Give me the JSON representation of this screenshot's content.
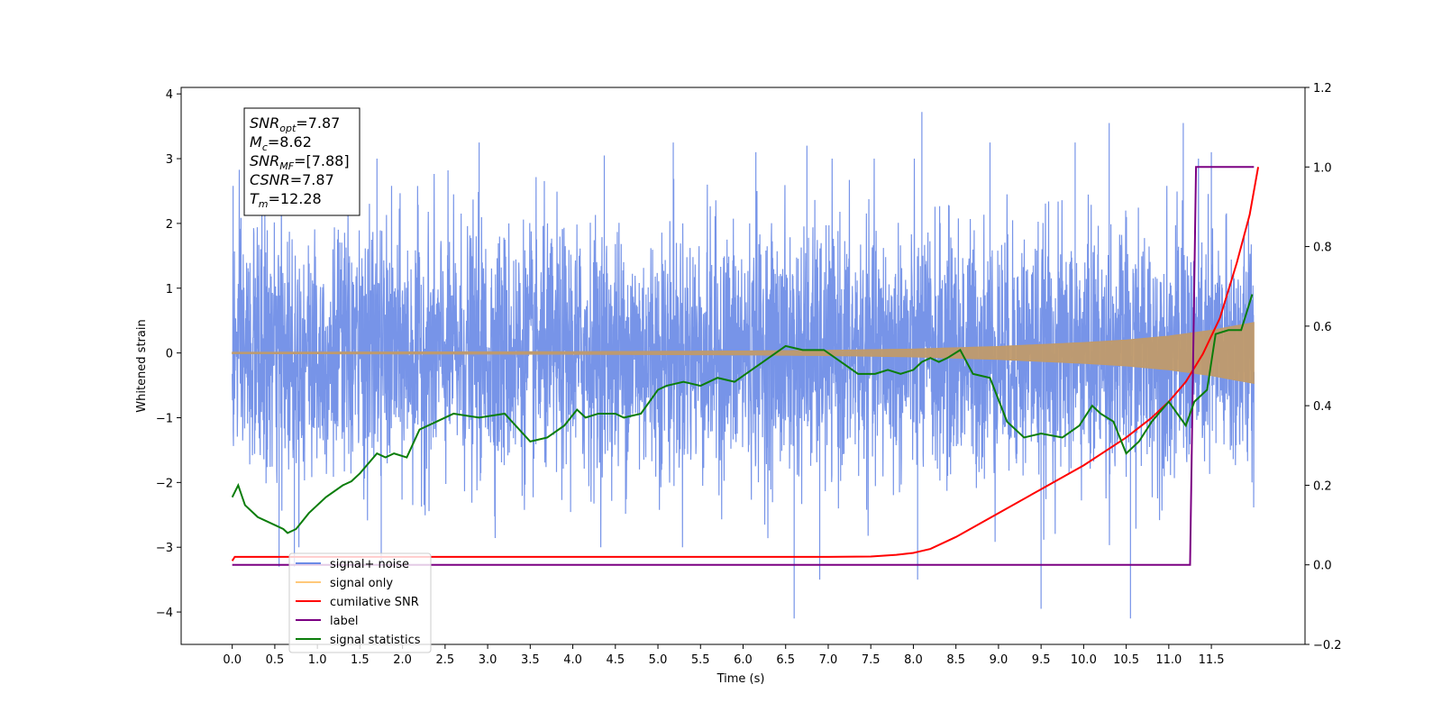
{
  "chart_data": {
    "type": "line",
    "xlabel": "Time (s)",
    "ylabel": "Whitened strain",
    "xlim": [
      -0.6,
      12.6
    ],
    "ylim": [
      -4.5,
      4.1
    ],
    "y2lim": [
      -0.2,
      1.2
    ],
    "x_ticks": [
      0.0,
      0.5,
      1.0,
      1.5,
      2.0,
      2.5,
      3.0,
      3.5,
      4.0,
      4.5,
      5.0,
      5.5,
      6.0,
      6.5,
      7.0,
      7.5,
      8.0,
      8.5,
      9.0,
      9.5,
      10.0,
      10.5,
      11.0,
      11.5
    ],
    "x_tick_labels": [
      "0.0",
      "0.5",
      "1.0",
      "1.5",
      "2.0",
      "2.5",
      "3.0",
      "3.5",
      "4.0",
      "4.5",
      "5.0",
      "5.5",
      "6.0",
      "6.5",
      "7.0",
      "7.5",
      "8.0",
      "8.5",
      "9.0",
      "9.5",
      "10.0",
      "10.5",
      "11.0",
      "11.5"
    ],
    "y_ticks": [
      -4,
      -3,
      -2,
      -1,
      0,
      1,
      2,
      3,
      4
    ],
    "y_tick_labels": [
      "−4",
      "−3",
      "−2",
      "−1",
      "0",
      "1",
      "2",
      "3",
      "4"
    ],
    "y2_ticks": [
      -0.2,
      0.0,
      0.2,
      0.4,
      0.6,
      0.8,
      1.0,
      1.2
    ],
    "y2_tick_labels": [
      "−0.2",
      "0.0",
      "0.2",
      "0.4",
      "0.6",
      "0.8",
      "1.0",
      "1.2"
    ],
    "grid": false,
    "legend_position": "lower-left",
    "series": [
      {
        "name": "signal+ noise",
        "color": "#6b8be6",
        "axis": "left",
        "kind": "noise-band",
        "x_range": [
          0.0,
          12.0
        ],
        "sigma": 1.0,
        "typical_range": [
          -2.3,
          2.5
        ],
        "spikes": [
          {
            "x": 0.01,
            "y": 2.58
          },
          {
            "x": 0.55,
            "y": -3.3
          },
          {
            "x": 0.73,
            "y": -3.3
          },
          {
            "x": 1.7,
            "y": 3.0
          },
          {
            "x": 1.75,
            "y": -3.3
          },
          {
            "x": 2.9,
            "y": 3.25
          },
          {
            "x": 4.37,
            "y": 3.05
          },
          {
            "x": 5.18,
            "y": 3.25
          },
          {
            "x": 6.15,
            "y": 3.1
          },
          {
            "x": 6.6,
            "y": -4.1
          },
          {
            "x": 6.75,
            "y": 3.2
          },
          {
            "x": 6.9,
            "y": -3.5
          },
          {
            "x": 8.05,
            "y": -3.5
          },
          {
            "x": 8.1,
            "y": 3.72
          },
          {
            "x": 8.9,
            "y": 3.25
          },
          {
            "x": 9.5,
            "y": -3.95
          },
          {
            "x": 9.9,
            "y": 3.25
          },
          {
            "x": 10.3,
            "y": 3.55
          },
          {
            "x": 10.55,
            "y": -4.1
          },
          {
            "x": 11.17,
            "y": 3.55
          },
          {
            "x": 11.5,
            "y": 3.1
          }
        ]
      },
      {
        "name": "signal only",
        "color": "#c09a6b",
        "axis": "left",
        "kind": "chirp-envelope",
        "x": [
          0,
          2,
          4,
          6,
          7,
          8,
          8.5,
          9,
          9.5,
          10,
          10.5,
          11,
          11.5,
          12.0
        ],
        "envelope": [
          0.01,
          0.015,
          0.02,
          0.03,
          0.04,
          0.06,
          0.08,
          0.1,
          0.13,
          0.16,
          0.2,
          0.26,
          0.35,
          0.47
        ]
      },
      {
        "name": "cumilative SNR",
        "color": "#ff0000",
        "axis": "right",
        "kind": "line",
        "x": [
          0.0,
          0.03,
          1.0,
          3.0,
          5.0,
          6.0,
          7.0,
          7.5,
          7.8,
          8.0,
          8.2,
          8.5,
          9.0,
          9.5,
          10.0,
          10.5,
          10.8,
          11.0,
          11.2,
          11.4,
          11.6,
          11.8,
          11.95,
          12.05
        ],
        "y": [
          0.01,
          0.02,
          0.02,
          0.02,
          0.02,
          0.02,
          0.02,
          0.021,
          0.025,
          0.03,
          0.04,
          0.07,
          0.13,
          0.19,
          0.25,
          0.32,
          0.37,
          0.41,
          0.46,
          0.53,
          0.62,
          0.76,
          0.88,
          1.0
        ]
      },
      {
        "name": "label",
        "color": "#7b0082",
        "axis": "right",
        "kind": "line",
        "x": [
          0.0,
          11.25,
          11.32,
          11.6,
          12.0
        ],
        "y": [
          0.0,
          0.0,
          1.0,
          1.0,
          1.0
        ]
      },
      {
        "name": "signal statistics",
        "color": "#0b7d0b",
        "axis": "right",
        "kind": "line",
        "x": [
          0.0,
          0.07,
          0.15,
          0.3,
          0.5,
          0.6,
          0.65,
          0.75,
          0.9,
          1.1,
          1.3,
          1.4,
          1.5,
          1.7,
          1.8,
          1.9,
          2.05,
          2.2,
          2.4,
          2.6,
          2.9,
          3.2,
          3.5,
          3.7,
          3.9,
          4.05,
          4.15,
          4.3,
          4.5,
          4.6,
          4.8,
          5.0,
          5.1,
          5.3,
          5.5,
          5.7,
          5.9,
          6.1,
          6.3,
          6.5,
          6.7,
          6.95,
          7.15,
          7.35,
          7.55,
          7.7,
          7.85,
          8.0,
          8.1,
          8.2,
          8.3,
          8.4,
          8.55,
          8.7,
          8.9,
          9.1,
          9.3,
          9.5,
          9.75,
          9.95,
          10.1,
          10.2,
          10.35,
          10.5,
          10.65,
          10.8,
          11.0,
          11.2,
          11.3,
          11.45,
          11.55,
          11.7,
          11.85,
          11.98
        ],
        "y": [
          0.17,
          0.2,
          0.15,
          0.12,
          0.1,
          0.09,
          0.08,
          0.09,
          0.13,
          0.17,
          0.2,
          0.21,
          0.23,
          0.28,
          0.27,
          0.28,
          0.27,
          0.34,
          0.36,
          0.38,
          0.37,
          0.38,
          0.31,
          0.32,
          0.35,
          0.39,
          0.37,
          0.38,
          0.38,
          0.37,
          0.38,
          0.44,
          0.45,
          0.46,
          0.45,
          0.47,
          0.46,
          0.49,
          0.52,
          0.55,
          0.54,
          0.54,
          0.51,
          0.48,
          0.48,
          0.49,
          0.48,
          0.49,
          0.51,
          0.52,
          0.51,
          0.52,
          0.54,
          0.48,
          0.47,
          0.36,
          0.32,
          0.33,
          0.32,
          0.35,
          0.4,
          0.38,
          0.36,
          0.28,
          0.31,
          0.36,
          0.41,
          0.35,
          0.41,
          0.44,
          0.58,
          0.59,
          0.59,
          0.68
        ]
      }
    ],
    "legend": [
      {
        "label": "signal+ noise",
        "color": "#6b8be6"
      },
      {
        "label": "signal only",
        "color": "#ffc87a"
      },
      {
        "label": "cumilative SNR",
        "color": "#ff0000"
      },
      {
        "label": "label",
        "color": "#7b0082"
      },
      {
        "label": "signal statistics",
        "color": "#0b7d0b"
      }
    ],
    "annotation": {
      "lines": [
        {
          "base": "SNR",
          "sub": "opt",
          "value": "=7.87"
        },
        {
          "base": "M",
          "sub": "c",
          "value": "=8.62"
        },
        {
          "base": "SNR",
          "sub": "MF",
          "value": "=[7.88]"
        },
        {
          "base": "CSNR",
          "sub": "",
          "value": "=7.87"
        },
        {
          "base": "T",
          "sub": "m",
          "value": "=12.28"
        }
      ]
    }
  }
}
